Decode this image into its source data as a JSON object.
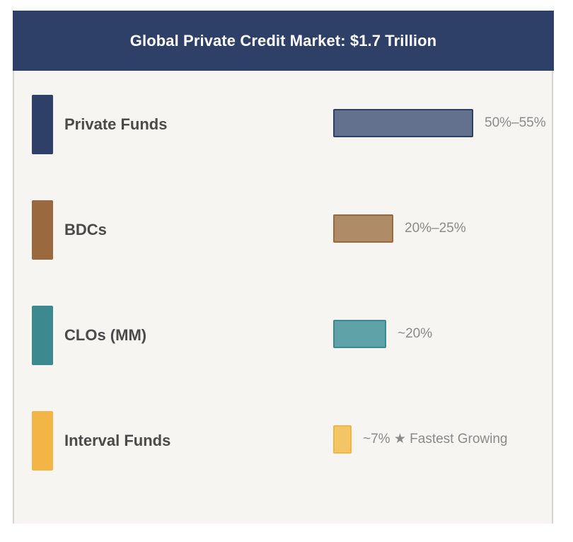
{
  "chart_data": {
    "type": "bar",
    "orientation": "horizontal",
    "title": "Global Private Credit Market: $1.7 Trillion",
    "categories": [
      "Private Funds",
      "BDCs",
      "CLOs (MM)",
      "Interval Funds"
    ],
    "values": [
      52.5,
      22.5,
      20,
      7
    ],
    "value_labels": [
      "50%–55%",
      "20%–25%",
      "~20%",
      "~7% ★ Fastest Growing"
    ],
    "colors": [
      "#2f4068",
      "#9a6a3e",
      "#3c8a90",
      "#f2b445"
    ],
    "bar_fill_colors": [
      "#63708e",
      "#b08b68",
      "#5fa3a8",
      "#f4c565"
    ],
    "xlim": [
      0,
      100
    ],
    "grid": false,
    "legend": "none"
  }
}
